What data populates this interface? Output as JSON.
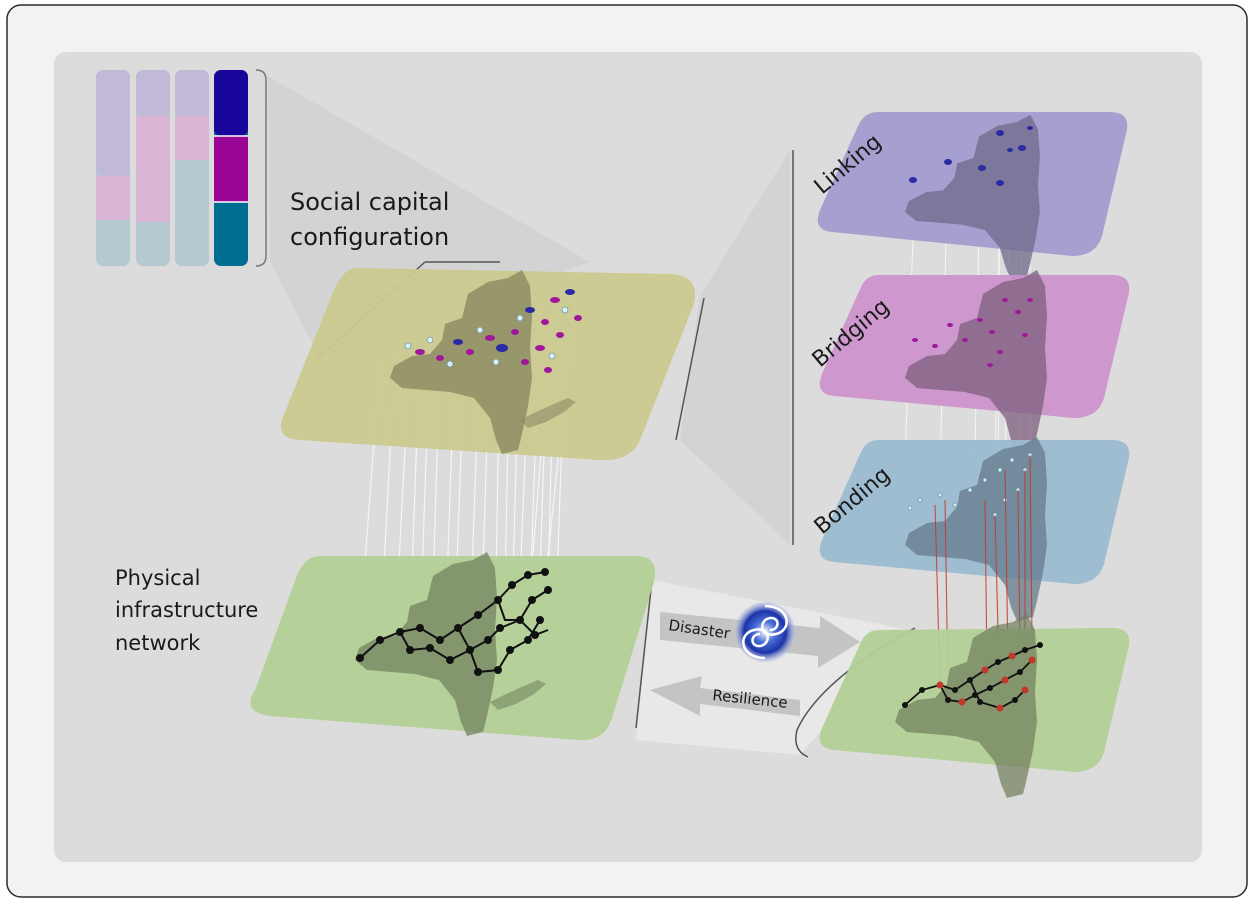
{
  "labels": {
    "social_capital": [
      "Social capital",
      "configuration"
    ],
    "physical": [
      "Physical",
      "infrastructure",
      "network"
    ],
    "linking": "Linking",
    "bridging": "Bridging",
    "bonding": "Bonding",
    "disaster": "Disaster",
    "resilience": "Resilience"
  },
  "colors": {
    "frame_bg": "#f2f2f2",
    "panel_bg": "#dcdcdc",
    "social_plane": "#c9c98e",
    "physical_plane": "#b3cf96",
    "linking_plane": "#a29ccf",
    "bridging_plane": "#cc93cc",
    "bonding_plane": "#9bbbd0",
    "bar_linking_light": "#c1b9d6",
    "bar_bridging_light": "#d9b4d4",
    "bar_bonding_light": "#b5c9d1",
    "bar_linking_dark": "#19069a",
    "bar_bridging_dark": "#9a0596",
    "bar_bonding_dark": "#006e90",
    "state_shape": "#6e6e6e",
    "link_red": "#c0392b",
    "node_linking": "#2a2aa6",
    "node_bridging": "#a0179b"
  },
  "icons": [
    "hurricane-icon",
    "arrow-right-icon",
    "arrow-left-icon"
  ]
}
